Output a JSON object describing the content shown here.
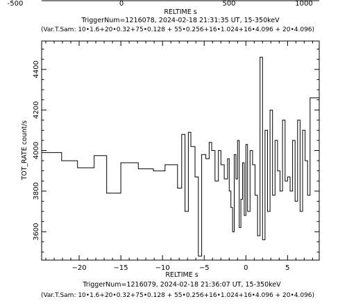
{
  "top_strip": {
    "tick_labels": [
      "-500",
      "0",
      "500",
      "1000"
    ],
    "xlabel": "RELTIME   s",
    "title": "TriggerNum=1216078, 2024-02-18 21:31:35 UT, 15-350keV",
    "subtitle": "(Var.T.Sam: 10•1.6+20•0.32+75•0.128  +  55•0.256+16•1.024+16•4.096  +  20•4.096)"
  },
  "chart_data": {
    "type": "line",
    "step": true,
    "xlabel": "RELTIME   s",
    "ylabel": "TOT_RATE   count/s",
    "title": "TriggerNum=1216079, 2024-02-18 21:36:07 UT, 15-350keV",
    "subtitle": "(Var.T.Sam: 10•1.6+20•0.32+75•0.128  +  55•0.256+16•1.024+16•4.096  +  20•4.096)",
    "xlim": [
      -24.5,
      8.8
    ],
    "ylim": [
      3460,
      4540
    ],
    "x_ticks": [
      -20,
      -15,
      -10,
      -5,
      0,
      5
    ],
    "y_ticks": [
      3600,
      3800,
      4000,
      4200,
      4400
    ],
    "grid": false,
    "x": [
      -24.5,
      -22.1,
      -20.2,
      -18.2,
      -16.7,
      -15.0,
      -12.9,
      -11.1,
      -9.7,
      -8.2,
      -7.7,
      -7.3,
      -6.9,
      -6.6,
      -6.1,
      -5.7,
      -5.3,
      -4.8,
      -4.4,
      -4.1,
      -3.7,
      -3.3,
      -3.0,
      -2.6,
      -2.2,
      -2.0,
      -1.8,
      -1.6,
      -1.4,
      -1.2,
      -1.0,
      -0.8,
      -0.6,
      -0.4,
      -0.2,
      0.0,
      0.2,
      0.5,
      0.8,
      1.1,
      1.4,
      1.7,
      2.0,
      2.3,
      2.6,
      2.9,
      3.2,
      3.5,
      3.8,
      4.1,
      4.4,
      4.7,
      5.0,
      5.3,
      5.6,
      5.9,
      6.2,
      6.5,
      6.8,
      7.1,
      7.4,
      7.7
    ],
    "y": [
      3990,
      3950,
      3915,
      3975,
      3790,
      3940,
      3910,
      3900,
      3930,
      3815,
      4080,
      3700,
      4090,
      4020,
      3870,
      3480,
      3980,
      3960,
      4040,
      4000,
      3850,
      4000,
      3930,
      3860,
      3960,
      3800,
      3720,
      3600,
      3980,
      3860,
      4050,
      3620,
      3760,
      3940,
      3680,
      4030,
      3700,
      4000,
      3930,
      3780,
      3580,
      4460,
      3560,
      4100,
      3700,
      4200,
      3780,
      4050,
      3900,
      3800,
      4150,
      3850,
      3870,
      3800,
      4050,
      3750,
      4150,
      3700,
      4100,
      3950,
      3780,
      4260
    ]
  }
}
